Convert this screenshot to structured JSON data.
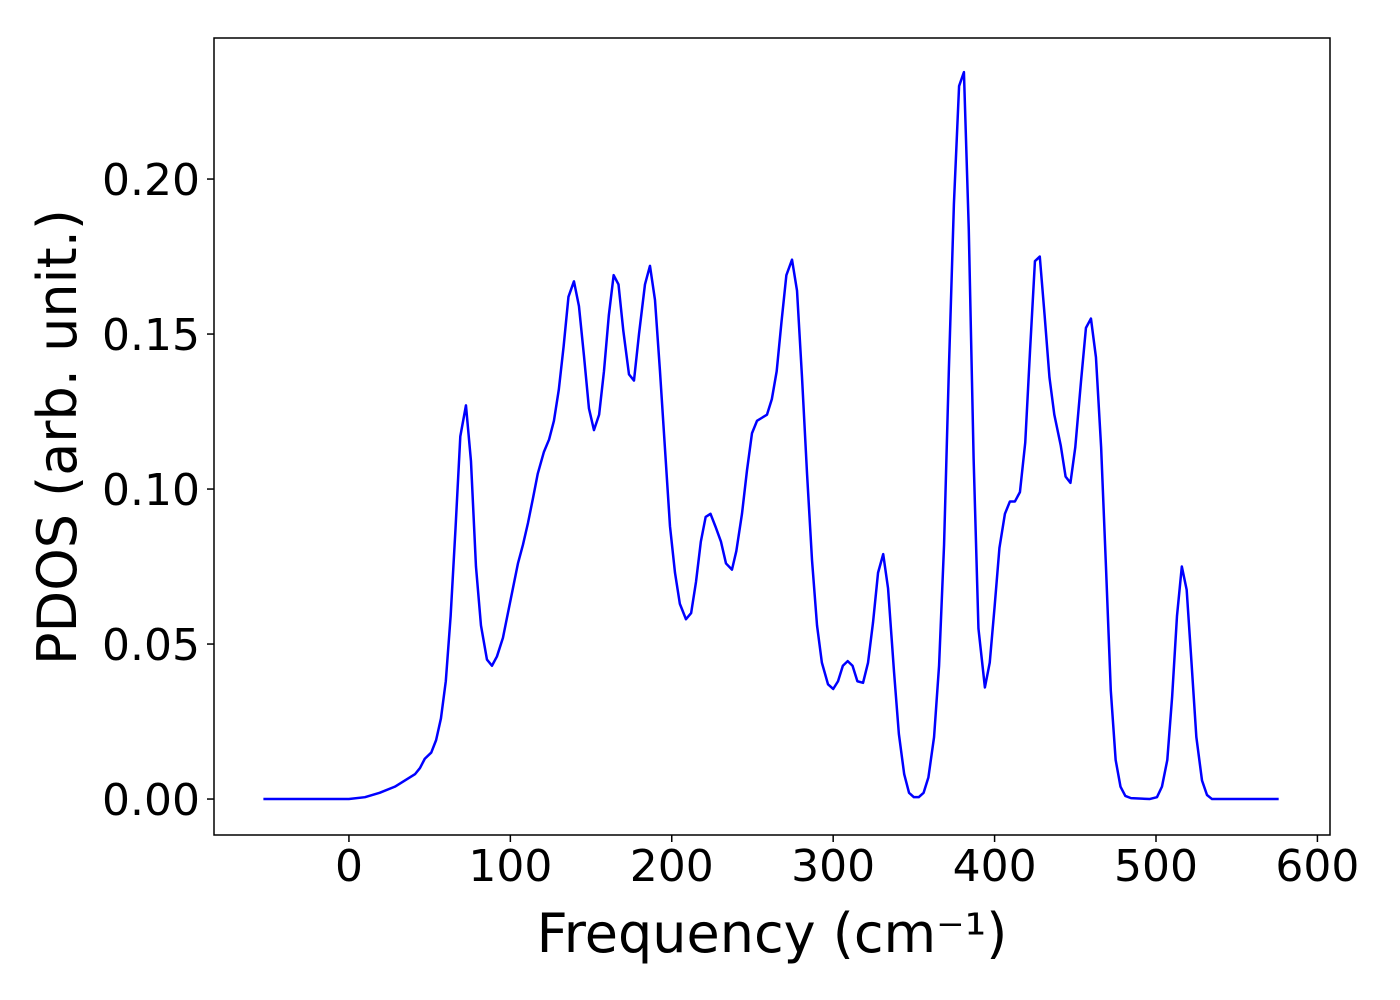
{
  "chart_data": {
    "type": "line",
    "x_label": "Frequency (cm⁻¹)",
    "y_label": "PDOS (arb. unit.)",
    "color": "#0000ff",
    "x": [
      -53,
      0,
      9.9,
      19,
      28.5,
      34.7,
      40.9,
      44,
      47,
      51,
      54,
      57,
      60,
      63,
      66,
      69,
      72.5,
      75.6,
      78.7,
      81.8,
      85.5,
      88.6,
      91.7,
      95.4,
      98.5,
      101.6,
      104.7,
      107.8,
      110.9,
      114,
      117,
      120.8,
      124,
      127,
      130,
      133,
      136,
      139.4,
      142.5,
      145.6,
      148.7,
      151.8,
      155,
      158,
      161,
      164,
      167,
      170,
      173.5,
      176.6,
      179.7,
      183.4,
      186.5,
      189.6,
      192.7,
      195.8,
      198.9,
      202,
      205,
      208.8,
      212,
      215,
      218,
      221,
      224,
      227,
      230.5,
      233.6,
      237.3,
      240,
      243.5,
      246.6,
      249.7,
      252.8,
      255.9,
      259,
      262,
      265,
      268,
      271,
      274.5,
      277.6,
      280.7,
      283.8,
      286.9,
      290,
      293,
      296.8,
      300,
      303,
      306,
      309,
      312,
      315,
      318.5,
      321.6,
      324.7,
      327.8,
      331,
      334,
      337.7,
      340.7,
      344,
      347,
      350,
      353,
      356,
      359,
      362.5,
      365.6,
      368.7,
      371.7,
      374.8,
      378,
      381,
      384,
      387,
      390,
      394,
      397,
      400,
      403,
      406.4,
      409.5,
      412.6,
      415.7,
      419,
      422,
      425,
      428,
      431,
      434,
      437,
      441,
      444,
      447,
      450,
      453.5,
      456.6,
      459.7,
      462.8,
      466,
      469,
      472,
      475,
      478,
      481,
      484.5,
      496,
      500.6,
      503.7,
      507,
      510,
      513,
      516,
      519,
      522,
      525,
      528.5,
      531.6,
      534.7,
      576
    ],
    "values": [
      0,
      0,
      0.0006,
      0.002,
      0.004,
      0.006,
      0.008,
      0.01,
      0.013,
      0.015,
      0.019,
      0.026,
      0.038,
      0.059,
      0.087,
      0.117,
      0.127,
      0.109,
      0.075,
      0.056,
      0.045,
      0.043,
      0.046,
      0.052,
      0.06,
      0.068,
      0.076,
      0.082,
      0.089,
      0.097,
      0.105,
      0.112,
      0.116,
      0.122,
      0.132,
      0.146,
      0.162,
      0.167,
      0.159,
      0.143,
      0.126,
      0.119,
      0.124,
      0.138,
      0.156,
      0.169,
      0.166,
      0.151,
      0.137,
      0.135,
      0.15,
      0.166,
      0.172,
      0.161,
      0.138,
      0.113,
      0.088,
      0.073,
      0.063,
      0.058,
      0.06,
      0.07,
      0.083,
      0.091,
      0.092,
      0.088,
      0.083,
      0.076,
      0.074,
      0.08,
      0.092,
      0.106,
      0.118,
      0.122,
      0.123,
      0.124,
      0.129,
      0.138,
      0.154,
      0.169,
      0.174,
      0.164,
      0.136,
      0.105,
      0.077,
      0.056,
      0.044,
      0.037,
      0.0355,
      0.038,
      0.043,
      0.0445,
      0.043,
      0.038,
      0.0375,
      0.044,
      0.057,
      0.073,
      0.079,
      0.068,
      0.041,
      0.021,
      0.008,
      0.002,
      0.0006,
      0.0006,
      0.002,
      0.007,
      0.02,
      0.043,
      0.082,
      0.139,
      0.192,
      0.23,
      0.2345,
      0.184,
      0.11,
      0.055,
      0.036,
      0.044,
      0.062,
      0.081,
      0.092,
      0.096,
      0.096,
      0.099,
      0.115,
      0.145,
      0.1735,
      0.175,
      0.156,
      0.136,
      0.124,
      0.114,
      0.104,
      0.102,
      0.1135,
      0.1345,
      0.152,
      0.155,
      0.1425,
      0.1135,
      0.075,
      0.035,
      0.0126,
      0.004,
      0.001,
      0.0003,
      0,
      0.0006,
      0.004,
      0.0126,
      0.033,
      0.059,
      0.075,
      0.0675,
      0.044,
      0.02,
      0.006,
      0.0013,
      0,
      0
    ],
    "xlim": [
      -83.6,
      607.8
    ],
    "ylim": [
      -0.0116,
      0.2455
    ],
    "xticks": [
      0,
      100,
      200,
      300,
      400,
      500,
      600
    ],
    "yticks": [
      {
        "value": 0,
        "label": "0.00"
      },
      {
        "value": 0.05,
        "label": "0.05"
      },
      {
        "value": 0.1,
        "label": "0.10"
      },
      {
        "value": 0.15,
        "label": "0.15"
      },
      {
        "value": 0.2,
        "label": "0.20"
      }
    ]
  }
}
